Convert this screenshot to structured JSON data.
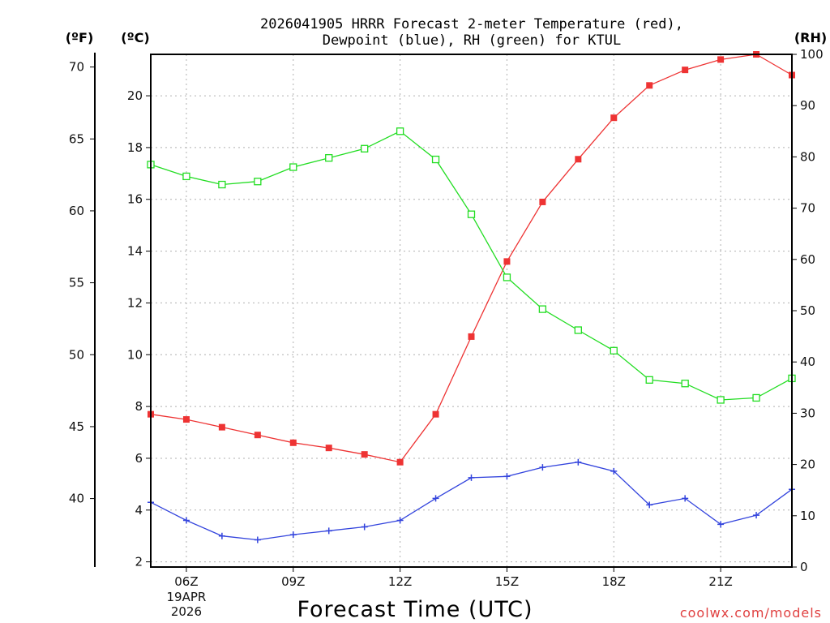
{
  "chart_data": {
    "type": "line",
    "title_line1": "2026041905 HRRR Forecast 2-meter Temperature (red),",
    "title_line2": "Dewpoint (blue), RH (green) for KTUL",
    "xlabel": "Forecast Time (UTC)",
    "watermark": "coolwx.com/models",
    "unit_f": "(ºF)",
    "unit_c": "(ºC)",
    "unit_rh": "(RH)",
    "x_hours": [
      5,
      6,
      7,
      8,
      9,
      10,
      11,
      12,
      13,
      14,
      15,
      16,
      17,
      18,
      19,
      20,
      21,
      22,
      23
    ],
    "x_ticks": [
      {
        "hour": 6,
        "label": "06Z"
      },
      {
        "hour": 9,
        "label": "09Z"
      },
      {
        "hour": 12,
        "label": "12Z"
      },
      {
        "hour": 15,
        "label": "15Z"
      },
      {
        "hour": 18,
        "label": "18Z"
      },
      {
        "hour": 21,
        "label": "21Z"
      }
    ],
    "date_label_line1": "19APR",
    "date_label_line2": "2026",
    "celsius_axis": {
      "ylim": [
        1.8,
        21.6
      ],
      "ticks": [
        2,
        4,
        6,
        8,
        10,
        12,
        14,
        16,
        18,
        20
      ]
    },
    "fahrenheit_axis": {
      "ticks": [
        40,
        45,
        50,
        55,
        60,
        65,
        70
      ]
    },
    "rh_axis": {
      "ylim": [
        0,
        100
      ],
      "ticks": [
        0,
        10,
        20,
        30,
        40,
        50,
        60,
        70,
        80,
        90,
        100
      ]
    },
    "series": [
      {
        "name": "Temperature",
        "units": "C",
        "color": "#ee3333",
        "marker": "filled-square",
        "values": [
          7.7,
          7.5,
          7.2,
          6.9,
          6.6,
          6.4,
          6.15,
          5.85,
          7.7,
          10.7,
          13.6,
          15.9,
          17.55,
          19.15,
          20.4,
          21.0,
          21.4,
          21.6,
          20.8
        ]
      },
      {
        "name": "Dewpoint",
        "units": "C",
        "color": "#3344dd",
        "marker": "plus",
        "values": [
          4.3,
          3.6,
          3.0,
          2.85,
          3.05,
          3.2,
          3.35,
          3.6,
          4.45,
          5.25,
          5.3,
          5.65,
          5.85,
          5.5,
          4.2,
          4.45,
          3.45,
          3.8,
          4.8
        ]
      },
      {
        "name": "RH",
        "units": "%",
        "color": "#22dd22",
        "marker": "open-square",
        "values": [
          78.5,
          76.2,
          74.6,
          75.2,
          78.0,
          79.8,
          81.6,
          85.0,
          79.5,
          68.8,
          56.5,
          50.3,
          46.2,
          42.2,
          36.5,
          35.8,
          32.6,
          33.0,
          36.8
        ]
      }
    ]
  }
}
